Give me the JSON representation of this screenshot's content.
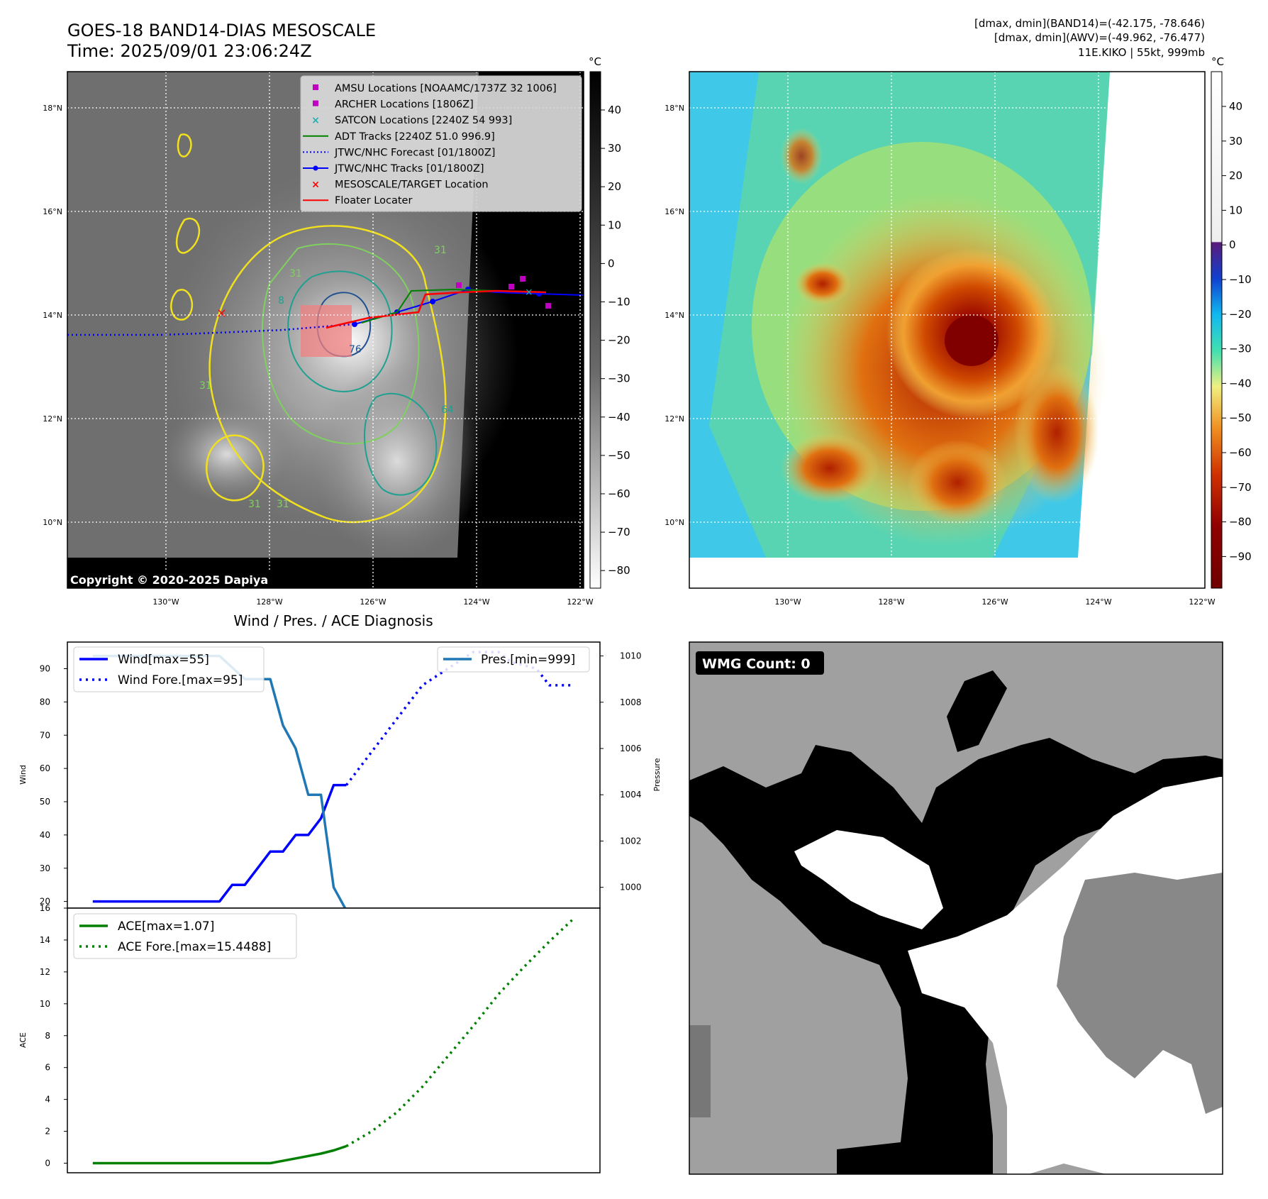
{
  "header": {
    "title_line1": "GOES-18 BAND14-DIAS MESOSCALE",
    "title_line2": "Time: 2025/09/01 23:06:24Z",
    "info_line1": "[dmax, dmin](BAND14)=(-42.175, -78.646)",
    "info_line2": "[dmax, dmin](AWV)=(-49.962, -76.477)",
    "info_line3": "11E.KIKO | 55kt, 999mb"
  },
  "map_axes": {
    "lat_ticks": [
      "18°N",
      "16°N",
      "14°N",
      "12°N",
      "10°N"
    ],
    "lon_ticks": [
      "130°W",
      "128°W",
      "126°W",
      "124°W",
      "122°W"
    ]
  },
  "ir_panel": {
    "colorbar_unit": "°C",
    "colorbar_ticks": [
      "40",
      "30",
      "20",
      "10",
      "0",
      "−10",
      "−20",
      "−30",
      "−40",
      "−50",
      "−60",
      "−70",
      "−80"
    ],
    "legend": [
      {
        "label": "AMSU Locations [NOAAMC/1737Z 32 1006]",
        "symbol": "square",
        "color": "#c000c0"
      },
      {
        "label": "ARCHER Locations [1806Z]",
        "symbol": "square",
        "color": "#c000c0"
      },
      {
        "label": "SATCON Locations [2240Z 54 993]",
        "symbol": "x",
        "color": "#20b0b0"
      },
      {
        "label": "ADT Tracks [2240Z 51.0 996.9]",
        "symbol": "line",
        "color": "#008000"
      },
      {
        "label": "JTWC/NHC Forecast [01/1800Z]",
        "symbol": "dotted",
        "color": "#0000ff"
      },
      {
        "label": "JTWC/NHC Tracks [01/1800Z]",
        "symbol": "line-dot",
        "color": "#0000ff"
      },
      {
        "label": "MESOSCALE/TARGET Location",
        "symbol": "x",
        "color": "#ff0000"
      },
      {
        "label": "Floater Locater",
        "symbol": "line",
        "color": "#ff0000"
      }
    ],
    "contour_labels": [
      "31",
      "31",
      "31",
      "64",
      "76",
      "31",
      "31",
      "8"
    ],
    "copyright": "Copyright © 2020-2025 Dapiya"
  },
  "awv_panel": {
    "colorbar_unit": "°C",
    "colorbar_ticks": [
      "40",
      "30",
      "20",
      "10",
      "0",
      "−10",
      "−20",
      "−30",
      "−40",
      "−50",
      "−60",
      "−70",
      "−80",
      "−90"
    ]
  },
  "wmg_panel": {
    "badge": "WMG Count: 0"
  },
  "chart_data": [
    {
      "type": "line",
      "title": "Wind / Pres. / ACE Diagnosis",
      "ylabel": "Wind",
      "y2label": "Pressure",
      "ylim": [
        18,
        98
      ],
      "y2lim": [
        999.1,
        1010.6
      ],
      "y_ticks": [
        20,
        30,
        40,
        50,
        60,
        70,
        80,
        90
      ],
      "y2_ticks": [
        1000,
        1002,
        1004,
        1006,
        1008,
        1010
      ],
      "x_index_lim": [
        -2,
        40
      ],
      "series": [
        {
          "name": "Wind[max=55]",
          "style": "solid",
          "color": "#0000ff",
          "axis": "left",
          "x": [
            0,
            10,
            11,
            12,
            13,
            14,
            15,
            16,
            17,
            18,
            19,
            20
          ],
          "values": [
            20,
            20,
            25,
            25,
            30,
            35,
            35,
            40,
            40,
            45,
            55,
            55
          ]
        },
        {
          "name": "Wind Fore.[max=95]",
          "style": "dotted",
          "color": "#0000ff",
          "axis": "left",
          "x": [
            20,
            22,
            24,
            26,
            28,
            30,
            32,
            33,
            35,
            36,
            38
          ],
          "values": [
            55,
            65,
            75,
            85,
            90,
            95,
            95,
            92,
            90,
            85,
            85
          ]
        },
        {
          "name": "Pres.[min=999]",
          "style": "solid",
          "color": "#1f77b4",
          "axis": "right",
          "x": [
            0,
            10,
            12,
            14,
            15,
            16,
            17,
            18,
            19,
            20
          ],
          "values": [
            1010,
            1010,
            1009,
            1009,
            1007,
            1006,
            1004,
            1004,
            1000,
            999
          ]
        }
      ]
    },
    {
      "type": "line",
      "ylabel": "ACE",
      "ylim": [
        -0.6,
        16.0
      ],
      "y_ticks": [
        0,
        2,
        4,
        6,
        8,
        10,
        12,
        14,
        16
      ],
      "x_index_lim": [
        -2,
        40
      ],
      "series": [
        {
          "name": "ACE[max=1.07]",
          "style": "solid",
          "color": "#008000",
          "x": [
            0,
            14,
            16,
            18,
            19,
            20
          ],
          "values": [
            0,
            0,
            0.3,
            0.6,
            0.8,
            1.07
          ]
        },
        {
          "name": "ACE Fore.[max=15.4488]",
          "style": "dotted",
          "color": "#008000",
          "x": [
            20,
            22,
            24,
            26,
            28,
            30,
            32,
            34,
            36,
            38
          ],
          "values": [
            1.07,
            2.0,
            3.2,
            4.8,
            6.7,
            8.6,
            10.6,
            12.3,
            13.9,
            15.4
          ]
        }
      ]
    }
  ]
}
